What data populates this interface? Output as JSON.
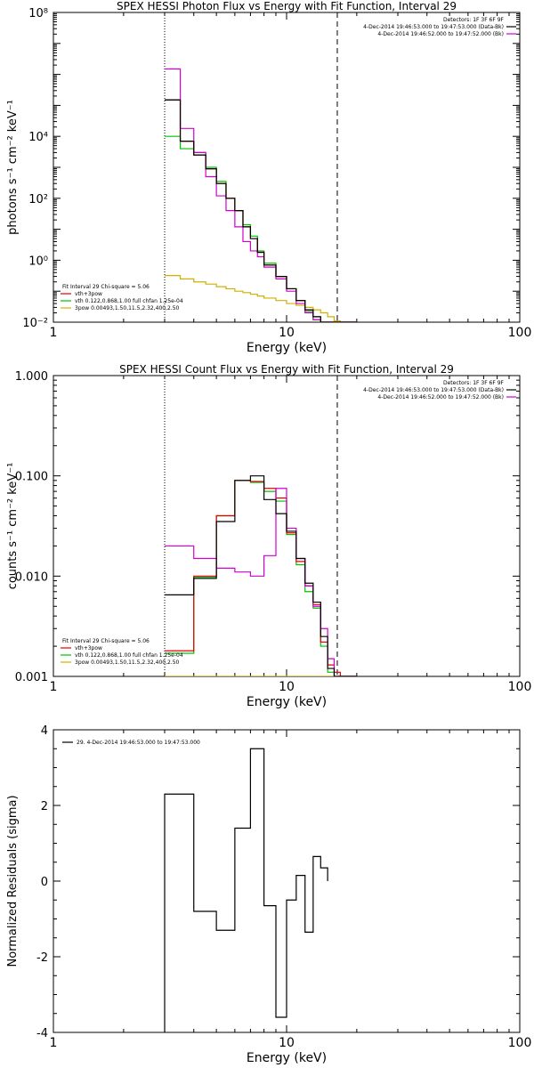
{
  "chart_data": [
    {
      "type": "line",
      "title": "SPEX HESSI Photon Flux vs Energy with Fit Function, Interval 29",
      "xlabel": "Energy (keV)",
      "ylabel": "photons s⁻¹ cm⁻² keV⁻¹",
      "xscale": "log",
      "yscale": "log",
      "xlim": [
        1,
        100
      ],
      "ylim": [
        0.01,
        100000000
      ],
      "xticks": [
        {
          "v": 1,
          "label": "1"
        },
        {
          "v": 10,
          "label": "10"
        },
        {
          "v": 100,
          "label": "100"
        }
      ],
      "yticks": [
        {
          "v": 0.01,
          "label": "10⁻²"
        },
        {
          "v": 1,
          "label": "10⁰"
        },
        {
          "v": 100,
          "label": "10²"
        },
        {
          "v": 10000,
          "label": "10⁴"
        },
        {
          "v": 100000000,
          "label": "10⁸"
        }
      ],
      "vlines": [
        {
          "x": 3,
          "style": "dotted"
        },
        {
          "x": 16.5,
          "style": "dashed"
        }
      ],
      "legend_top": [
        {
          "text": "Detectors: 1F 3F 6F 9F",
          "color": null
        },
        {
          "text": "4-Dec-2014 19:46:53.000 to 19:47:53.000 (Data-Bk)",
          "color": "#000000"
        },
        {
          "text": "4-Dec-2014 19:46:52.000 to 19:47:52.000 (Bk)",
          "color": "#d000d0"
        }
      ],
      "legend_bottom": [
        {
          "text": "Fit Interval 29   Chi-square = 5.06",
          "color": null
        },
        {
          "text": "vth+3pow",
          "color": "#e00000"
        },
        {
          "text": "vth 0.122,0.868,1.00  full chfan 1.25e-04",
          "color": "#00c000"
        },
        {
          "text": "3pow 0.00493,1.50,11.5,2.32,400,2.50",
          "color": "#d0b000"
        }
      ],
      "edges": [
        3,
        3.5,
        4,
        4.5,
        5,
        5.5,
        6,
        6.5,
        7,
        7.5,
        8,
        9,
        10,
        11,
        12,
        13,
        14,
        15,
        16,
        17,
        18,
        19,
        20
      ],
      "series": [
        {
          "name": "Data-Bk",
          "color": "#000000",
          "values": [
            150000,
            7000,
            2500,
            900,
            300,
            100,
            40,
            12,
            5,
            1.8,
            0.7,
            0.3,
            0.12,
            0.05,
            0.025,
            0.015,
            0.01,
            0.01,
            0.01,
            0.01,
            0.01,
            0.01
          ]
        },
        {
          "name": "Bk",
          "color": "#d000d0",
          "values": [
            1500000,
            18000,
            3000,
            500,
            120,
            40,
            12,
            4,
            2,
            1.3,
            0.6,
            0.25,
            0.1,
            0.04,
            0.02,
            0.012,
            0.01,
            0.01,
            0.01,
            0.01,
            0.01,
            0.01
          ]
        },
        {
          "name": "vth+3pow",
          "color": "#e00000",
          "values": [
            150000,
            7000,
            2500,
            900,
            300,
            100,
            40,
            12,
            5,
            1.8,
            0.7,
            0.3,
            0.12,
            0.05,
            0.025,
            0.015,
            0.01,
            0.01,
            0.01,
            0.01,
            0.01,
            0.01
          ]
        },
        {
          "name": "vth",
          "color": "#00c000",
          "values": [
            10000,
            4000,
            3000,
            1000,
            350,
            100,
            40,
            14,
            6,
            2,
            0.8,
            0.3,
            0.12,
            0.05,
            0.022,
            0.012,
            0.01,
            0.01,
            0.01,
            0.01,
            0.01,
            0.01
          ]
        },
        {
          "name": "3pow",
          "color": "#d0b000",
          "values": [
            0.32,
            0.25,
            0.2,
            0.17,
            0.14,
            0.12,
            0.1,
            0.09,
            0.08,
            0.07,
            0.06,
            0.05,
            0.04,
            0.035,
            0.03,
            0.025,
            0.02,
            0.015,
            0.011,
            0.01,
            0.01,
            0.01
          ]
        }
      ]
    },
    {
      "type": "line",
      "title": "SPEX HESSI Count Flux vs Energy with Fit Function, Interval 29",
      "xlabel": "Energy (keV)",
      "ylabel": "counts s⁻¹ cm⁻² keV⁻¹",
      "xscale": "log",
      "yscale": "log",
      "xlim": [
        1,
        100
      ],
      "ylim": [
        0.001,
        1
      ],
      "xticks": [
        {
          "v": 1,
          "label": "1"
        },
        {
          "v": 10,
          "label": "10"
        },
        {
          "v": 100,
          "label": "100"
        }
      ],
      "yticks": [
        {
          "v": 0.001,
          "label": "0.001"
        },
        {
          "v": 0.01,
          "label": "0.010"
        },
        {
          "v": 0.1,
          "label": "0.100"
        },
        {
          "v": 1,
          "label": "1.000"
        }
      ],
      "vlines": [
        {
          "x": 3,
          "style": "dotted"
        },
        {
          "x": 16.5,
          "style": "dashed"
        }
      ],
      "legend_top": [
        {
          "text": "Detectors: 1F 3F 6F 9F",
          "color": null
        },
        {
          "text": "4-Dec-2014 19:46:53.000 to 19:47:53.000 (Data-Bk)",
          "color": "#000000"
        },
        {
          "text": "4-Dec-2014 19:46:52.000 to 19:47:52.000 (Bk)",
          "color": "#d000d0"
        }
      ],
      "legend_bottom": [
        {
          "text": "Fit Interval 29   Chi-square = 5.06",
          "color": null
        },
        {
          "text": "vth+3pow",
          "color": "#e00000"
        },
        {
          "text": "vth 0.122,0.868,1.00  full chfan 1.25e-04",
          "color": "#00c000"
        },
        {
          "text": "3pow 0.00493,1.50,11.5,2.32,400,2.50",
          "color": "#d0b000"
        }
      ],
      "edges": [
        3,
        4,
        5,
        6,
        7,
        8,
        9,
        10,
        11,
        12,
        13,
        14,
        15,
        16,
        17,
        18,
        19,
        20
      ],
      "series": [
        {
          "name": "Data-Bk",
          "color": "#000000",
          "values": [
            0.0065,
            0.0095,
            0.035,
            0.09,
            0.1,
            0.058,
            0.042,
            0.028,
            0.015,
            0.0085,
            0.0055,
            0.0025,
            0.0012,
            0.001,
            0.001,
            0.001,
            0.001
          ]
        },
        {
          "name": "Bk",
          "color": "#d000d0",
          "values": [
            0.02,
            0.015,
            0.012,
            0.011,
            0.01,
            0.016,
            0.075,
            0.03,
            0.015,
            0.008,
            0.005,
            0.003,
            0.0015,
            0.001,
            0.001,
            0.001,
            0.001
          ]
        },
        {
          "name": "vth+3pow",
          "color": "#e00000",
          "values": [
            0.0018,
            0.01,
            0.04,
            0.09,
            0.088,
            0.075,
            0.06,
            0.027,
            0.014,
            0.008,
            0.0052,
            0.0022,
            0.0013,
            0.0011,
            0.001,
            0.001,
            0.001
          ]
        },
        {
          "name": "vth",
          "color": "#00c000",
          "values": [
            0.0017,
            0.0098,
            0.04,
            0.09,
            0.086,
            0.07,
            0.056,
            0.026,
            0.013,
            0.007,
            0.0048,
            0.002,
            0.0011,
            0.001,
            0.001,
            0.001,
            0.001
          ]
        },
        {
          "name": "3pow",
          "color": "#d0b000",
          "values": [
            0.001,
            0.001,
            0.001,
            0.001,
            0.001,
            0.001,
            0.001,
            0.001,
            0.001,
            0.001,
            0.001,
            0.001,
            0.001,
            0.001,
            0.001,
            0.001,
            0.001
          ]
        }
      ]
    },
    {
      "type": "line",
      "title": "",
      "xlabel": "Energy (keV)",
      "ylabel": "Normalized Residuals (sigma)",
      "xscale": "log",
      "yscale": "linear",
      "xlim": [
        1,
        100
      ],
      "ylim": [
        -4,
        4
      ],
      "xticks": [
        {
          "v": 1,
          "label": "1"
        },
        {
          "v": 10,
          "label": "10"
        },
        {
          "v": 100,
          "label": "100"
        }
      ],
      "yticks": [
        {
          "v": -4,
          "label": "-4"
        },
        {
          "v": -2,
          "label": "-2"
        },
        {
          "v": 0,
          "label": "0"
        },
        {
          "v": 2,
          "label": "2"
        },
        {
          "v": 4,
          "label": "4"
        }
      ],
      "vlines": [],
      "legend_top_left": [
        {
          "text": "29.  4-Dec-2014 19:46:53.000 to 19:47:53.000",
          "color": "#000000"
        }
      ],
      "edges": [
        3,
        4,
        5,
        6,
        7,
        8,
        9,
        10,
        11,
        12,
        13,
        14,
        15,
        16
      ],
      "series": [
        {
          "name": "29.  4-Dec-2014 19:46:53.000 to 19:47:53.000",
          "color": "#000000",
          "values": [
            2.3,
            -0.8,
            -1.3,
            1.4,
            3.5,
            -0.65,
            -3.6,
            -0.5,
            0.15,
            -1.35,
            0.65,
            0.35,
            null
          ]
        }
      ]
    }
  ]
}
